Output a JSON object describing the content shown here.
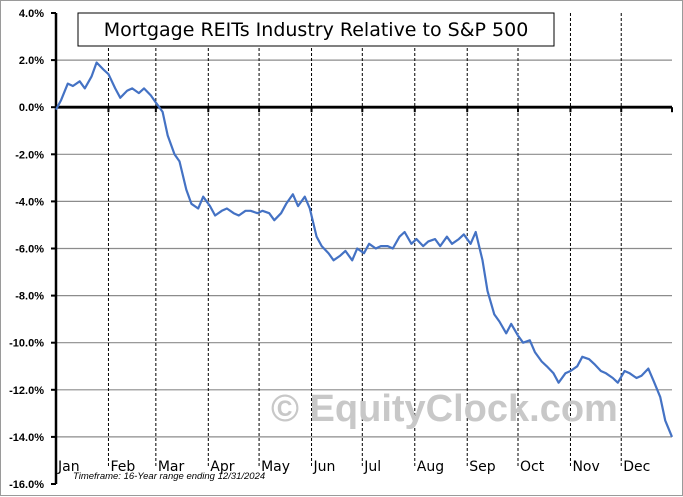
{
  "chart_data": {
    "type": "line",
    "title": "Mortgage REITs Industry Relative to S&P 500",
    "xlabel": "",
    "ylabel": "",
    "footnote": "Timeframe: 16-Year range ending 12/31/2024",
    "watermark": "© EquityClock.com",
    "ylim": [
      -16.0,
      4.0
    ],
    "y_ticks": [
      "4.0%",
      "2.0%",
      "0.0%",
      "-2.0%",
      "-4.0%",
      "-6.0%",
      "-8.0%",
      "-10.0%",
      "-12.0%",
      "-14.0%",
      "-16.0%"
    ],
    "y_tick_values": [
      4,
      2,
      0,
      -2,
      -4,
      -6,
      -8,
      -10,
      -12,
      -14,
      -16
    ],
    "categories": [
      "Jan",
      "Feb",
      "Mar",
      "Apr",
      "May",
      "Jun",
      "Jul",
      "Aug",
      "Sep",
      "Oct",
      "Nov",
      "Dec"
    ],
    "grid": {
      "horizontal": true,
      "vertical_dashed_month_separators": true
    },
    "line_color": "#4472c4",
    "series": [
      {
        "name": "Mortgage REITs Industry Relative to S&P 500 (seasonal %)",
        "x_day_of_year": [
          1,
          4,
          8,
          11,
          15,
          18,
          22,
          25,
          29,
          32,
          36,
          39,
          43,
          46,
          50,
          53,
          57,
          60,
          64,
          67,
          71,
          74,
          78,
          81,
          85,
          88,
          92,
          95,
          99,
          102,
          106,
          109,
          113,
          116,
          120,
          123,
          127,
          130,
          134,
          137,
          141,
          144,
          148,
          151,
          155,
          158,
          162,
          165,
          169,
          172,
          176,
          179,
          183,
          186,
          190,
          193,
          197,
          200,
          204,
          207,
          211,
          214,
          218,
          221,
          225,
          228,
          232,
          235,
          239,
          242,
          246,
          249,
          253,
          256,
          260,
          263,
          267,
          270,
          274,
          277,
          281,
          284,
          288,
          291,
          295,
          298,
          302,
          305,
          309,
          312,
          316,
          319,
          323,
          326,
          330,
          333,
          337,
          340,
          344,
          347,
          351,
          354,
          358,
          361,
          365
        ],
        "values": [
          -0.1,
          0.3,
          1.0,
          0.9,
          1.1,
          0.8,
          1.3,
          1.9,
          1.6,
          1.4,
          0.8,
          0.4,
          0.7,
          0.8,
          0.6,
          0.8,
          0.5,
          0.2,
          -0.2,
          -1.2,
          -2.0,
          -2.3,
          -3.5,
          -4.1,
          -4.3,
          -3.8,
          -4.2,
          -4.6,
          -4.4,
          -4.3,
          -4.5,
          -4.6,
          -4.4,
          -4.4,
          -4.5,
          -4.4,
          -4.5,
          -4.8,
          -4.5,
          -4.1,
          -3.7,
          -4.2,
          -3.8,
          -4.3,
          -5.5,
          -5.9,
          -6.2,
          -6.5,
          -6.3,
          -6.1,
          -6.5,
          -6.0,
          -6.2,
          -5.8,
          -6.0,
          -5.9,
          -5.9,
          -6.0,
          -5.5,
          -5.3,
          -5.8,
          -5.6,
          -5.9,
          -5.7,
          -5.6,
          -5.9,
          -5.5,
          -5.8,
          -5.6,
          -5.4,
          -5.8,
          -5.3,
          -6.5,
          -7.8,
          -8.8,
          -9.1,
          -9.6,
          -9.2,
          -9.7,
          -10.0,
          -9.9,
          -10.4,
          -10.8,
          -11.0,
          -11.3,
          -11.7,
          -11.3,
          -11.2,
          -11.0,
          -10.6,
          -10.7,
          -10.9,
          -11.2,
          -11.3,
          -11.5,
          -11.7,
          -11.2,
          -11.3,
          -11.5,
          -11.4,
          -11.1,
          -11.6,
          -12.3,
          -13.3,
          -14.0
        ]
      }
    ]
  }
}
